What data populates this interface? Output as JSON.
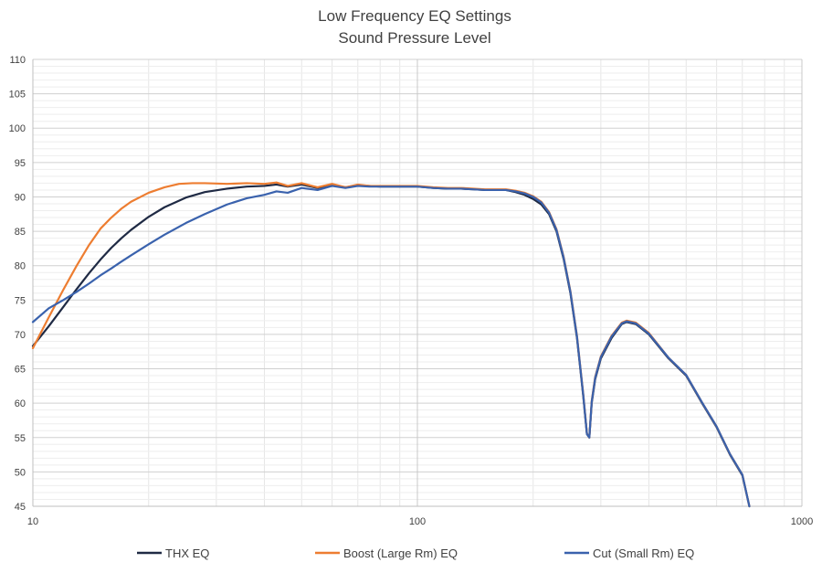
{
  "chart_data": {
    "type": "line",
    "title": "Low Frequency EQ Settings",
    "subtitle": "Sound Pressure Level",
    "xscale": "log",
    "xlim": [
      10,
      1000
    ],
    "ylim": [
      45,
      110
    ],
    "x_ticks": [
      "10",
      "100",
      "1000"
    ],
    "y_ticks": [
      "45",
      "50",
      "55",
      "60",
      "65",
      "70",
      "75",
      "80",
      "85",
      "90",
      "95",
      "100",
      "105",
      "110"
    ],
    "grid": true,
    "legend_position": "bottom",
    "series": [
      {
        "name": "THX EQ",
        "color": "#1f2a44",
        "points": [
          [
            10,
            68.3
          ],
          [
            11,
            71.2
          ],
          [
            12,
            74.0
          ],
          [
            13,
            76.6
          ],
          [
            14,
            78.9
          ],
          [
            15,
            80.9
          ],
          [
            16,
            82.6
          ],
          [
            17,
            84.0
          ],
          [
            18,
            85.2
          ],
          [
            20,
            87.1
          ],
          [
            22,
            88.5
          ],
          [
            25,
            89.9
          ],
          [
            28,
            90.7
          ],
          [
            32,
            91.2
          ],
          [
            36,
            91.5
          ],
          [
            40,
            91.6
          ],
          [
            43,
            91.8
          ],
          [
            46,
            91.5
          ],
          [
            50,
            91.8
          ],
          [
            55,
            91.3
          ],
          [
            60,
            91.8
          ],
          [
            65,
            91.4
          ],
          [
            70,
            91.7
          ],
          [
            75,
            91.6
          ],
          [
            80,
            91.5
          ],
          [
            90,
            91.5
          ],
          [
            100,
            91.5
          ],
          [
            110,
            91.3
          ],
          [
            120,
            91.2
          ],
          [
            130,
            91.2
          ],
          [
            140,
            91.1
          ],
          [
            150,
            91.0
          ],
          [
            160,
            91.0
          ],
          [
            170,
            91.0
          ],
          [
            180,
            90.7
          ],
          [
            190,
            90.3
          ],
          [
            200,
            89.7
          ],
          [
            210,
            88.9
          ],
          [
            220,
            87.5
          ],
          [
            230,
            85.0
          ],
          [
            240,
            81.0
          ],
          [
            250,
            76.0
          ],
          [
            260,
            69.5
          ],
          [
            270,
            61.0
          ],
          [
            276,
            55.5
          ],
          [
            280,
            55.0
          ],
          [
            284,
            60.0
          ],
          [
            290,
            63.5
          ],
          [
            300,
            66.5
          ],
          [
            320,
            69.5
          ],
          [
            340,
            71.5
          ],
          [
            350,
            71.8
          ],
          [
            370,
            71.5
          ],
          [
            400,
            70.0
          ],
          [
            450,
            66.5
          ],
          [
            500,
            64.0
          ],
          [
            550,
            60.0
          ],
          [
            600,
            56.5
          ],
          [
            650,
            52.5
          ],
          [
            700,
            49.5
          ],
          [
            730,
            45.0
          ]
        ]
      },
      {
        "name": "Boost (Large Rm) EQ",
        "color": "#ed7d31",
        "points": [
          [
            10,
            68.0
          ],
          [
            11,
            72.5
          ],
          [
            12,
            76.5
          ],
          [
            13,
            80.0
          ],
          [
            14,
            83.0
          ],
          [
            15,
            85.4
          ],
          [
            16,
            87.0
          ],
          [
            17,
            88.3
          ],
          [
            18,
            89.3
          ],
          [
            20,
            90.6
          ],
          [
            22,
            91.4
          ],
          [
            24,
            91.9
          ],
          [
            26,
            92.0
          ],
          [
            28,
            92.0
          ],
          [
            32,
            91.9
          ],
          [
            36,
            92.0
          ],
          [
            40,
            91.9
          ],
          [
            43,
            92.1
          ],
          [
            46,
            91.6
          ],
          [
            50,
            92.0
          ],
          [
            55,
            91.4
          ],
          [
            60,
            91.9
          ],
          [
            65,
            91.4
          ],
          [
            70,
            91.8
          ],
          [
            75,
            91.6
          ],
          [
            80,
            91.6
          ],
          [
            90,
            91.6
          ],
          [
            100,
            91.6
          ],
          [
            110,
            91.4
          ],
          [
            120,
            91.3
          ],
          [
            130,
            91.3
          ],
          [
            140,
            91.2
          ],
          [
            150,
            91.1
          ],
          [
            160,
            91.1
          ],
          [
            170,
            91.1
          ],
          [
            180,
            90.9
          ],
          [
            190,
            90.6
          ],
          [
            200,
            90.1
          ],
          [
            210,
            89.3
          ],
          [
            220,
            87.8
          ],
          [
            230,
            85.3
          ],
          [
            240,
            81.3
          ],
          [
            250,
            76.3
          ],
          [
            260,
            69.8
          ],
          [
            270,
            61.3
          ],
          [
            276,
            55.6
          ],
          [
            280,
            55.0
          ],
          [
            284,
            60.3
          ],
          [
            290,
            63.8
          ],
          [
            300,
            66.8
          ],
          [
            320,
            69.8
          ],
          [
            340,
            71.7
          ],
          [
            350,
            72.0
          ],
          [
            370,
            71.7
          ],
          [
            400,
            70.2
          ],
          [
            450,
            66.6
          ],
          [
            500,
            64.1
          ],
          [
            550,
            60.1
          ],
          [
            600,
            56.6
          ],
          [
            650,
            52.6
          ],
          [
            700,
            49.6
          ],
          [
            730,
            45.0
          ]
        ]
      },
      {
        "name": "Cut (Small Rm) EQ",
        "color": "#3a62ad",
        "points": [
          [
            10,
            71.8
          ],
          [
            11,
            73.8
          ],
          [
            12,
            75.0
          ],
          [
            13,
            76.2
          ],
          [
            14,
            77.4
          ],
          [
            15,
            78.6
          ],
          [
            16,
            79.6
          ],
          [
            17,
            80.6
          ],
          [
            18,
            81.5
          ],
          [
            20,
            83.1
          ],
          [
            22,
            84.5
          ],
          [
            25,
            86.2
          ],
          [
            28,
            87.5
          ],
          [
            32,
            88.9
          ],
          [
            36,
            89.8
          ],
          [
            40,
            90.3
          ],
          [
            43,
            90.8
          ],
          [
            46,
            90.6
          ],
          [
            50,
            91.3
          ],
          [
            55,
            91.0
          ],
          [
            60,
            91.6
          ],
          [
            65,
            91.3
          ],
          [
            70,
            91.6
          ],
          [
            75,
            91.5
          ],
          [
            80,
            91.5
          ],
          [
            90,
            91.5
          ],
          [
            100,
            91.5
          ],
          [
            110,
            91.3
          ],
          [
            120,
            91.2
          ],
          [
            130,
            91.2
          ],
          [
            140,
            91.1
          ],
          [
            150,
            91.0
          ],
          [
            160,
            91.0
          ],
          [
            170,
            91.0
          ],
          [
            180,
            90.8
          ],
          [
            190,
            90.5
          ],
          [
            200,
            90.0
          ],
          [
            210,
            89.2
          ],
          [
            220,
            87.7
          ],
          [
            230,
            85.2
          ],
          [
            240,
            81.2
          ],
          [
            250,
            76.2
          ],
          [
            260,
            69.7
          ],
          [
            270,
            61.2
          ],
          [
            276,
            55.5
          ],
          [
            280,
            55.0
          ],
          [
            284,
            60.2
          ],
          [
            290,
            63.7
          ],
          [
            300,
            66.7
          ],
          [
            320,
            69.7
          ],
          [
            340,
            71.6
          ],
          [
            350,
            71.9
          ],
          [
            370,
            71.6
          ],
          [
            400,
            70.1
          ],
          [
            450,
            66.6
          ],
          [
            500,
            64.1
          ],
          [
            550,
            60.1
          ],
          [
            600,
            56.6
          ],
          [
            650,
            52.6
          ],
          [
            700,
            49.6
          ],
          [
            730,
            45.0
          ]
        ]
      }
    ]
  }
}
